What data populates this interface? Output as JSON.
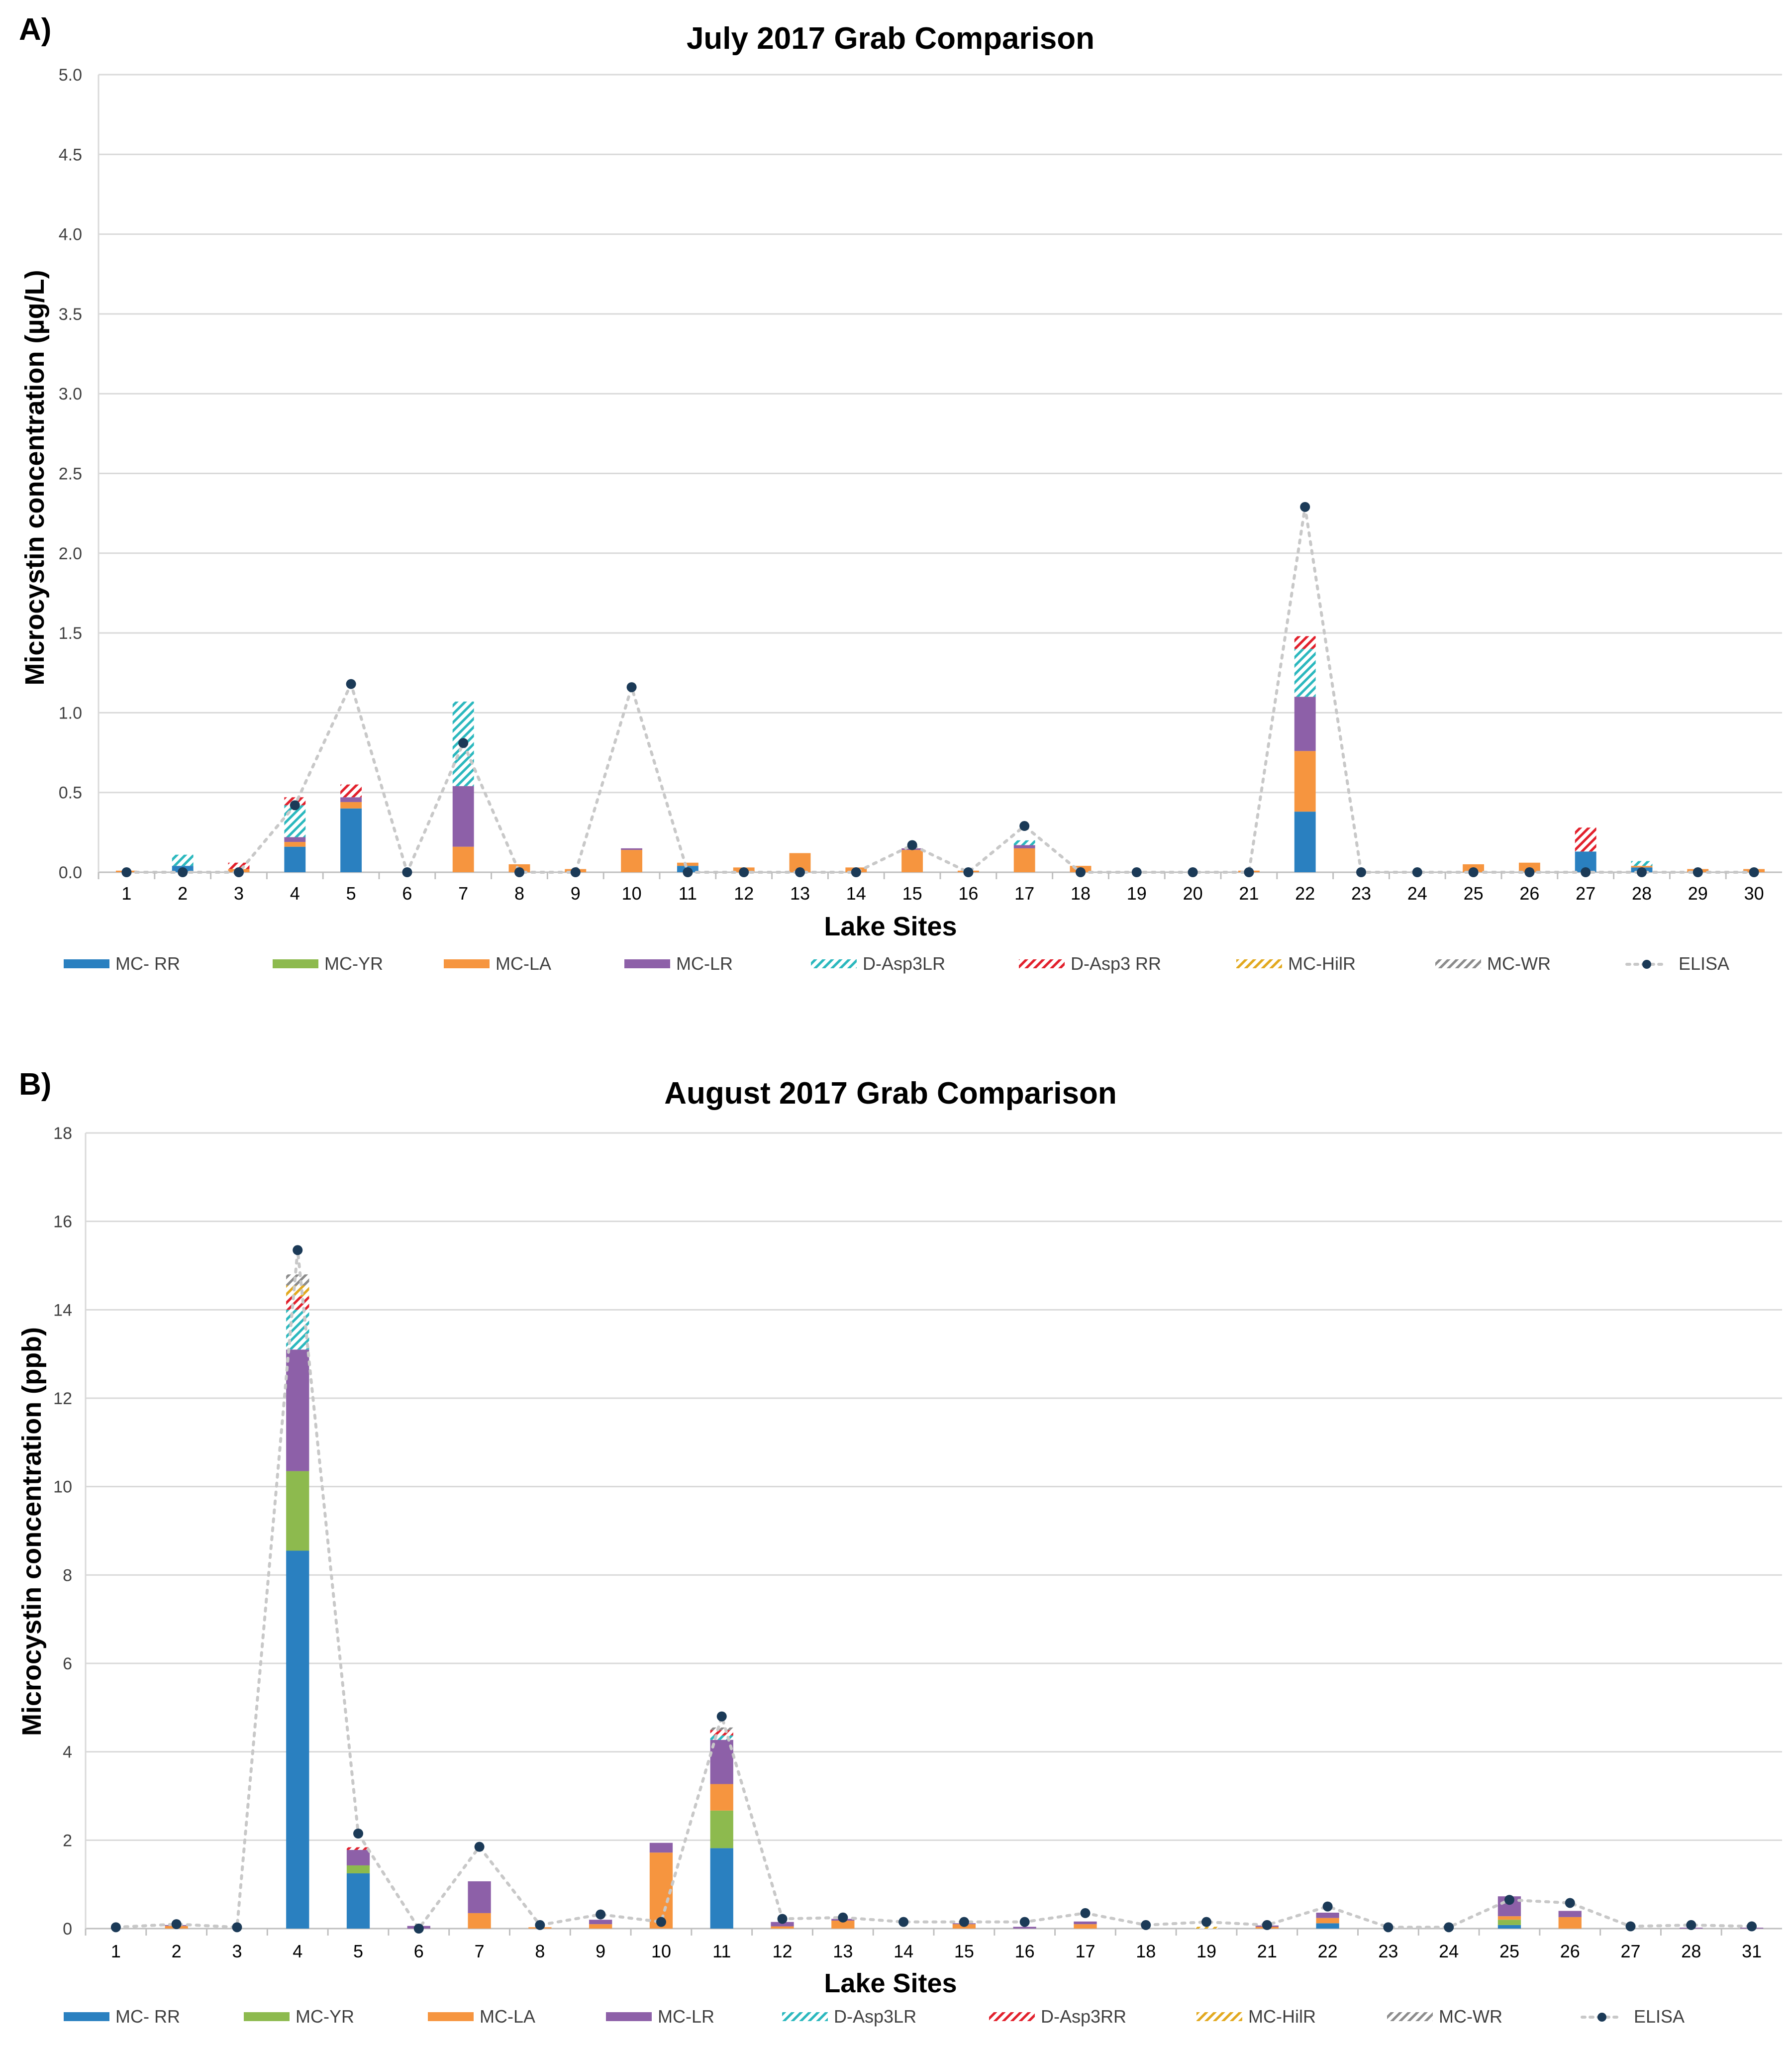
{
  "colors": {
    "mc_rr": "#2A80C0",
    "mc_yr": "#8DBA4E",
    "mc_la": "#F6953F",
    "mc_lr": "#8D60A8",
    "d_asp3lr": "#2BB8BE",
    "d_asp3rr": "#E2202C",
    "mc_hilr": "#E2A91F",
    "mc_wr": "#8C8C8C",
    "elisa_dot": "#1B3A57",
    "elisa_line": "#C8C8C8"
  },
  "chart_data": [
    {
      "panel_label": "A)",
      "type": "bar",
      "stacked": true,
      "title": "July 2017 Grab Comparison",
      "xlabel": "Lake Sites",
      "ylabel": "Microcystin concentration (µg/L)",
      "ylim": [
        0,
        5.0
      ],
      "yticks": [
        "0.0",
        "0.5",
        "1.0",
        "1.5",
        "2.0",
        "2.5",
        "3.0",
        "3.5",
        "4.0",
        "4.5",
        "5.0"
      ],
      "grid": true,
      "legend_position": "bottom",
      "categories": [
        "1",
        "2",
        "3",
        "4",
        "5",
        "6",
        "7",
        "8",
        "9",
        "10",
        "11",
        "12",
        "13",
        "14",
        "15",
        "16",
        "17",
        "18",
        "19",
        "20",
        "21",
        "22",
        "23",
        "24",
        "25",
        "26",
        "27",
        "28",
        "29",
        "30"
      ],
      "series": [
        {
          "key": "mc_rr",
          "name": "MC- RR",
          "pattern": "solid",
          "values": [
            0,
            0.04,
            0,
            0.16,
            0.4,
            0,
            0,
            0,
            0,
            0,
            0.04,
            0,
            0,
            0,
            0,
            0,
            0,
            0,
            0,
            0,
            0,
            0.38,
            0,
            0,
            0,
            0,
            0.13,
            0.03,
            0,
            0
          ]
        },
        {
          "key": "mc_yr",
          "name": "MC-YR",
          "pattern": "solid",
          "values": [
            0,
            0,
            0,
            0,
            0,
            0,
            0,
            0,
            0,
            0,
            0,
            0,
            0,
            0,
            0,
            0,
            0,
            0,
            0,
            0,
            0,
            0,
            0,
            0,
            0,
            0,
            0,
            0,
            0,
            0
          ]
        },
        {
          "key": "mc_la",
          "name": "MC-LA",
          "pattern": "solid",
          "values": [
            0.01,
            0,
            0.02,
            0.03,
            0.04,
            0,
            0.16,
            0.05,
            0.02,
            0.14,
            0.02,
            0.03,
            0.12,
            0.03,
            0.14,
            0.01,
            0.15,
            0.04,
            0,
            0,
            0.01,
            0.38,
            0,
            0,
            0.05,
            0.06,
            0,
            0.01,
            0.02,
            0.02
          ]
        },
        {
          "key": "mc_lr",
          "name": "MC-LR",
          "pattern": "solid",
          "values": [
            0,
            0,
            0,
            0.03,
            0.03,
            0,
            0.38,
            0,
            0,
            0.01,
            0,
            0,
            0,
            0,
            0.01,
            0,
            0.02,
            0,
            0,
            0,
            0,
            0.34,
            0,
            0,
            0,
            0,
            0,
            0,
            0,
            0
          ]
        },
        {
          "key": "d_asp3lr",
          "name": "D-Asp3LR",
          "pattern": "hatch",
          "values": [
            0,
            0.07,
            0,
            0.2,
            0,
            0,
            0.53,
            0,
            0,
            0,
            0,
            0,
            0,
            0,
            0,
            0,
            0.03,
            0,
            0,
            0,
            0,
            0.3,
            0,
            0,
            0,
            0,
            0,
            0.03,
            0,
            0
          ]
        },
        {
          "key": "d_asp3rr",
          "name": "D-Asp3 RR",
          "pattern": "hatch",
          "values": [
            0,
            0,
            0.04,
            0.05,
            0.08,
            0,
            0,
            0,
            0,
            0,
            0,
            0,
            0,
            0,
            0,
            0,
            0,
            0,
            0,
            0,
            0,
            0.08,
            0,
            0,
            0,
            0,
            0.15,
            0,
            0,
            0
          ]
        },
        {
          "key": "mc_hilr",
          "name": "MC-HilR",
          "pattern": "hatch",
          "values": [
            0,
            0,
            0,
            0,
            0,
            0,
            0,
            0,
            0,
            0,
            0,
            0,
            0,
            0,
            0,
            0,
            0,
            0,
            0,
            0,
            0,
            0,
            0,
            0,
            0,
            0,
            0,
            0,
            0,
            0
          ]
        },
        {
          "key": "mc_wr",
          "name": "MC-WR",
          "pattern": "hatch",
          "values": [
            0,
            0,
            0,
            0,
            0,
            0,
            0,
            0,
            0,
            0,
            0,
            0,
            0,
            0,
            0,
            0,
            0,
            0,
            0,
            0,
            0,
            0,
            0,
            0,
            0,
            0,
            0,
            0,
            0,
            0
          ]
        }
      ],
      "elisa": {
        "key": "elisa",
        "name": "ELISA",
        "values": [
          0,
          0,
          0,
          0.42,
          1.18,
          0,
          0.81,
          0,
          0,
          1.16,
          0,
          0,
          0,
          0,
          0.17,
          0,
          0.29,
          0,
          0,
          0,
          0,
          2.29,
          0,
          0,
          0,
          0,
          0,
          0,
          0,
          0
        ]
      }
    },
    {
      "panel_label": "B)",
      "type": "bar",
      "stacked": true,
      "title": "August 2017 Grab Comparison",
      "xlabel": "Lake Sites",
      "ylabel": "Microcystin concentration (ppb)",
      "ylim": [
        0,
        18
      ],
      "yticks": [
        "0",
        "2",
        "4",
        "6",
        "8",
        "10",
        "12",
        "14",
        "16",
        "18"
      ],
      "grid": true,
      "legend_position": "bottom",
      "categories": [
        "1",
        "2",
        "3",
        "4",
        "5",
        "6",
        "7",
        "8",
        "9",
        "10",
        "11",
        "12",
        "13",
        "14",
        "15",
        "16",
        "17",
        "18",
        "19",
        "21",
        "22",
        "23",
        "24",
        "25",
        "26",
        "27",
        "28",
        "31"
      ],
      "series": [
        {
          "key": "mc_rr",
          "name": "MC- RR",
          "pattern": "solid",
          "values": [
            0,
            0,
            0,
            8.55,
            1.25,
            0,
            0,
            0,
            0,
            0,
            1.82,
            0,
            0,
            0,
            0,
            0,
            0,
            0,
            0,
            0,
            0.12,
            0,
            0,
            0.08,
            0,
            0,
            0,
            0
          ]
        },
        {
          "key": "mc_yr",
          "name": "MC-YR",
          "pattern": "solid",
          "values": [
            0,
            0,
            0,
            1.8,
            0.18,
            0,
            0,
            0,
            0,
            0,
            0.85,
            0,
            0,
            0,
            0,
            0,
            0,
            0,
            0,
            0,
            0,
            0,
            0,
            0.12,
            0,
            0,
            0,
            0
          ]
        },
        {
          "key": "mc_la",
          "name": "MC-LA",
          "pattern": "solid",
          "values": [
            0,
            0.06,
            0,
            0,
            0,
            0,
            0.35,
            0.03,
            0.1,
            1.72,
            0.6,
            0.05,
            0.18,
            0,
            0.1,
            0,
            0.1,
            0,
            0,
            0.04,
            0.12,
            0,
            0,
            0.08,
            0.26,
            0,
            0,
            0
          ]
        },
        {
          "key": "mc_lr",
          "name": "MC-LR",
          "pattern": "solid",
          "values": [
            0,
            0.02,
            0,
            2.75,
            0.35,
            0.06,
            0.72,
            0,
            0.1,
            0.22,
            1.0,
            0.1,
            0.04,
            0,
            0.02,
            0.04,
            0.06,
            0,
            0,
            0.03,
            0.12,
            0,
            0,
            0.45,
            0.14,
            0,
            0.02,
            0.02
          ]
        },
        {
          "key": "d_asp3lr",
          "name": "D-Asp3LR",
          "pattern": "hatch",
          "values": [
            0,
            0,
            0,
            0.9,
            0,
            0,
            0,
            0,
            0,
            0,
            0.1,
            0,
            0,
            0,
            0,
            0,
            0,
            0,
            0,
            0,
            0,
            0,
            0,
            0,
            0,
            0,
            0,
            0
          ]
        },
        {
          "key": "d_asp3rr",
          "name": "D-Asp3RR",
          "pattern": "hatch",
          "values": [
            0,
            0,
            0,
            0.3,
            0.06,
            0,
            0,
            0,
            0,
            0,
            0.12,
            0,
            0,
            0,
            0,
            0,
            0,
            0,
            0,
            0,
            0,
            0,
            0,
            0,
            0,
            0,
            0,
            0
          ]
        },
        {
          "key": "mc_hilr",
          "name": "MC-HilR",
          "pattern": "hatch",
          "values": [
            0,
            0,
            0,
            0.25,
            0,
            0,
            0,
            0,
            0,
            0,
            0,
            0,
            0,
            0,
            0,
            0,
            0,
            0,
            0.04,
            0,
            0,
            0,
            0,
            0,
            0,
            0,
            0,
            0
          ]
        },
        {
          "key": "mc_wr",
          "name": "MC-WR",
          "pattern": "hatch",
          "values": [
            0,
            0,
            0,
            0.25,
            0,
            0,
            0,
            0,
            0,
            0,
            0.06,
            0,
            0,
            0,
            0,
            0,
            0,
            0,
            0,
            0,
            0,
            0,
            0,
            0,
            0,
            0,
            0,
            0
          ]
        }
      ],
      "elisa": {
        "key": "elisa",
        "name": "ELISA",
        "values": [
          0.03,
          0.1,
          0.03,
          15.35,
          2.15,
          0,
          1.85,
          0.08,
          0.32,
          0.15,
          4.8,
          0.22,
          0.25,
          0.15,
          0.15,
          0.15,
          0.35,
          0.08,
          0.15,
          0.08,
          0.5,
          0.03,
          0.03,
          0.65,
          0.58,
          0.05,
          0.08,
          0.05
        ]
      }
    }
  ]
}
